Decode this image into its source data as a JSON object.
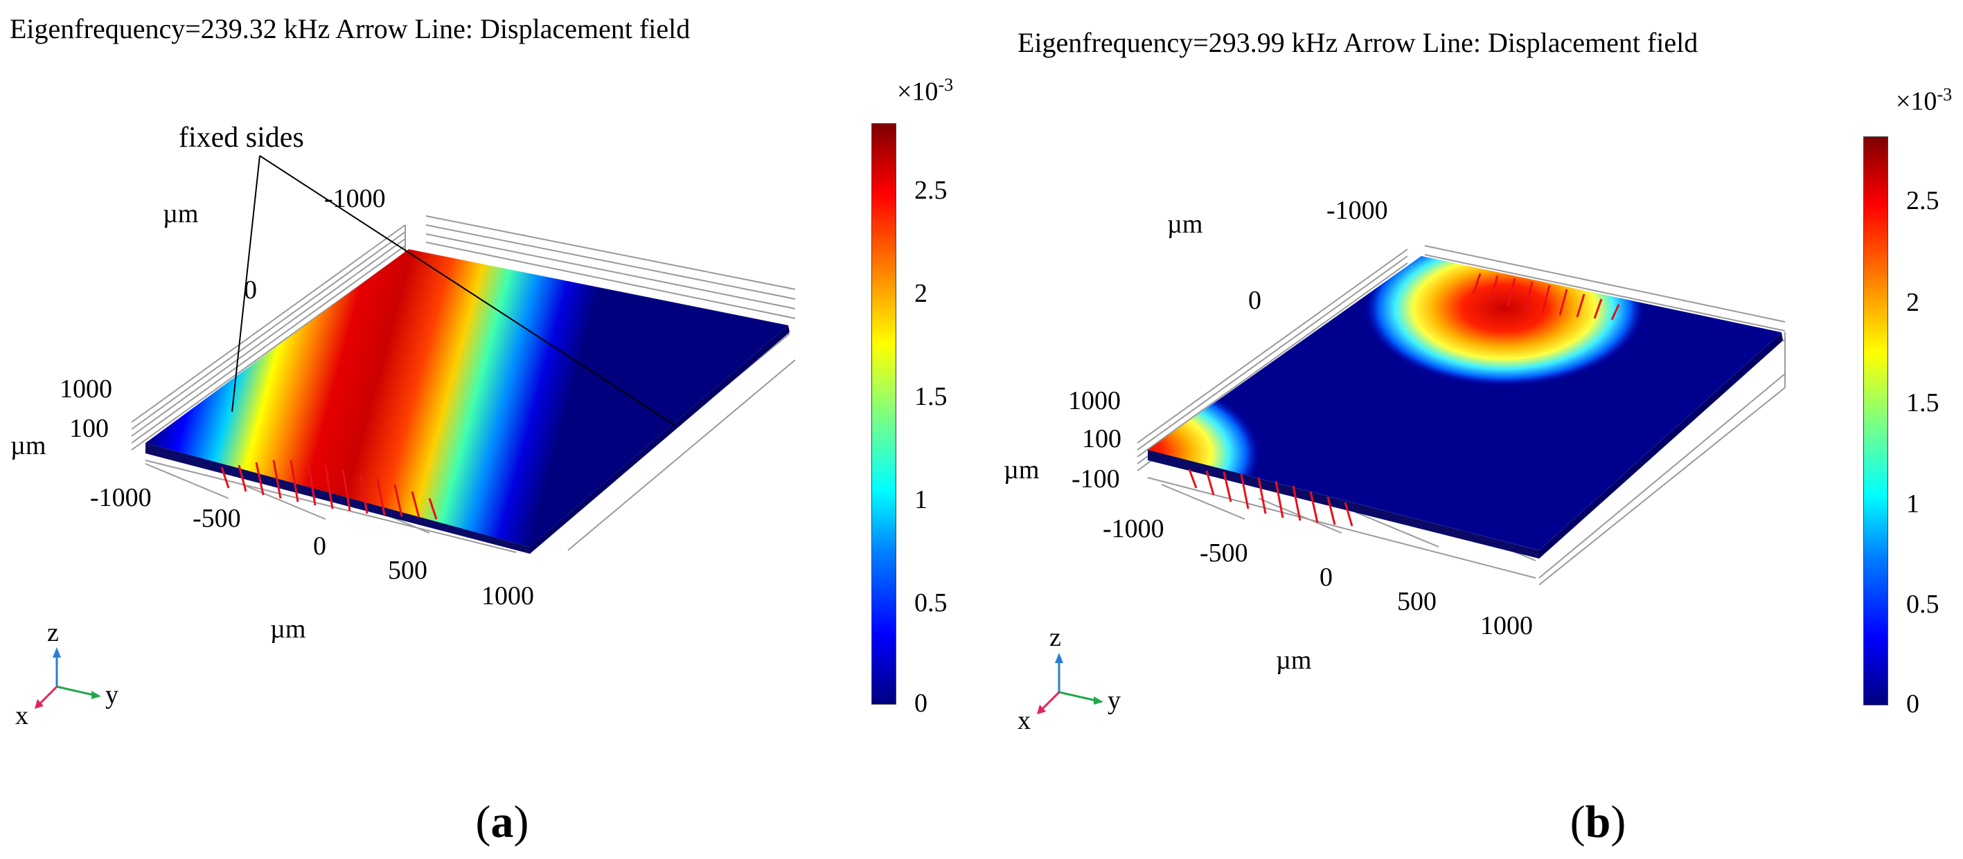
{
  "panel_a": {
    "title": "Eigenfrequency=239.32 kHz   Arrow Line: Displacement field",
    "annotation": "fixed sides",
    "y_ticks": [
      "-1000",
      "0",
      "1000"
    ],
    "y_unit": "µm",
    "z_ticks": [
      "100"
    ],
    "z_unit": "µm",
    "x_ticks": [
      "-1000",
      "-500",
      "0",
      "500",
      "1000"
    ],
    "x_unit": "µm",
    "colorbar": {
      "exponent_base": "×10",
      "exponent_power": "-3",
      "ticks": [
        "2.5",
        "2",
        "1.5",
        "1",
        "0.5",
        "0"
      ],
      "min": 0,
      "max": 2.8
    },
    "triad": {
      "z": "z",
      "y": "y",
      "x": "x"
    },
    "label_open": "(",
    "label_letter": "a",
    "label_close": ")"
  },
  "panel_b": {
    "title": "Eigenfrequency=293.99 kHz   Arrow Line: Displacement field",
    "y_ticks": [
      "-1000",
      "0",
      "1000"
    ],
    "y_unit": "µm",
    "z_ticks": [
      "100",
      "-100"
    ],
    "z_unit": "µm",
    "x_ticks": [
      "-1000",
      "-500",
      "0",
      "500",
      "1000"
    ],
    "x_unit": "µm",
    "colorbar": {
      "exponent_base": "×10",
      "exponent_power": "-3",
      "ticks": [
        "2.5",
        "2",
        "1.5",
        "1",
        "0.5",
        "0"
      ],
      "min": 0,
      "max": 2.8
    },
    "triad": {
      "z": "z",
      "y": "y",
      "x": "x"
    },
    "label_open": "(",
    "label_letter": "b",
    "label_close": ")"
  },
  "colors": {
    "jet_low": "#00007f",
    "jet_high": "#7f0000",
    "arrow": "#e8101a",
    "triad_x": "#e6245a",
    "triad_y": "#1fa84a",
    "triad_z": "#2a7fd4",
    "grid": "#9a9a9a"
  }
}
